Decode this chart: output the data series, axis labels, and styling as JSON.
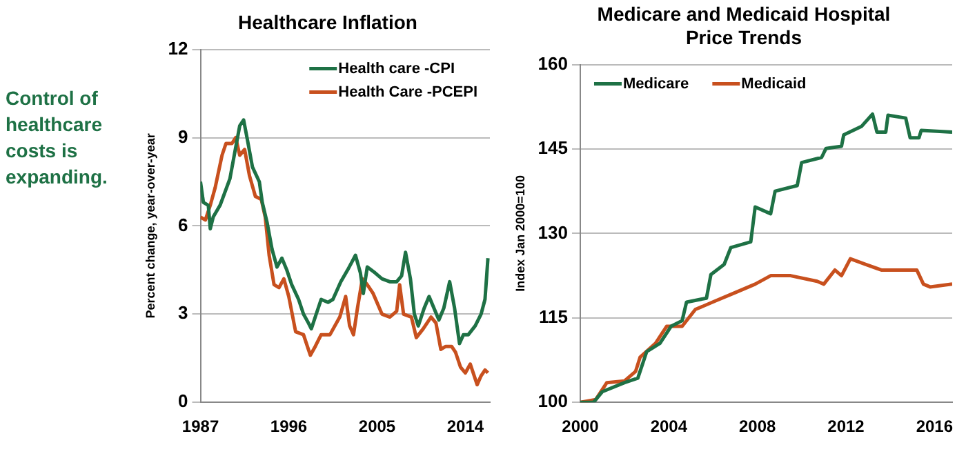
{
  "chart_data": [
    {
      "type": "other",
      "title": "Control of healthcare costs is expanding.",
      "color": "#1e7145"
    },
    {
      "type": "line",
      "title": "Healthcare Inflation",
      "ylabel": "Percent change, year-over-year",
      "xlim": [
        1987,
        2016.5
      ],
      "xticks": [
        1987,
        1996,
        2005,
        2014
      ],
      "ylim": [
        0,
        12
      ],
      "yticks": [
        0,
        3,
        6,
        9,
        12
      ],
      "grid": "y",
      "legend": "top right",
      "series": [
        {
          "name": "Health care -CPI",
          "color": "#1e7145",
          "x": [
            1987,
            1987.3,
            1987.8,
            1988,
            1988.3,
            1989,
            1990,
            1990.5,
            1991,
            1991.4,
            1991.8,
            1992.3,
            1993,
            1993.3,
            1993.8,
            1994.3,
            1994.8,
            1995.3,
            1995.8,
            1996.3,
            1997,
            1997.5,
            1998,
            1998.3,
            1998.7,
            1999.3,
            2000,
            2000.5,
            2001.3,
            2002,
            2002.8,
            2003.3,
            2003.6,
            2004,
            2004.8,
            2005.5,
            2006.3,
            2007,
            2007.5,
            2007.9,
            2008.4,
            2008.8,
            2009.2,
            2009.8,
            2010.3,
            2010.8,
            2011.3,
            2011.8,
            2012.4,
            2012.9,
            2013.4,
            2013.8,
            2014.3,
            2015,
            2015.6,
            2016,
            2016.3
          ],
          "values": [
            7.5,
            6.8,
            6.7,
            5.9,
            6.3,
            6.7,
            7.6,
            8.5,
            9.4,
            9.6,
            8.9,
            8,
            7.5,
            6.8,
            6.1,
            5.2,
            4.6,
            4.9,
            4.5,
            4,
            3.5,
            3,
            2.7,
            2.5,
            2.9,
            3.5,
            3.4,
            3.5,
            4.1,
            4.5,
            5,
            4.4,
            3.7,
            4.6,
            4.4,
            4.2,
            4.1,
            4.1,
            4.3,
            5.1,
            4.2,
            3,
            2.6,
            3.2,
            3.6,
            3.2,
            2.8,
            3.2,
            4.1,
            3.2,
            2,
            2.3,
            2.3,
            2.6,
            3,
            3.5,
            4.9
          ]
        },
        {
          "name": "Health Care -PCEPI",
          "color": "#c8501e",
          "x": [
            1987,
            1987.5,
            1988,
            1988.5,
            1989.2,
            1989.6,
            1990.2,
            1990.6,
            1991,
            1991.5,
            1992,
            1992.6,
            1993.2,
            1993.6,
            1994,
            1994.5,
            1995,
            1995.5,
            1996,
            1996.7,
            1997.5,
            1998.2,
            1998.7,
            1999.3,
            2000.2,
            2001.2,
            2001.8,
            2002.2,
            2002.6,
            2003,
            2003.5,
            2004,
            2004.6,
            2005.5,
            2006.3,
            2007,
            2007.3,
            2007.7,
            2008.5,
            2009,
            2009.7,
            2010.5,
            2011,
            2011.5,
            2012,
            2012.6,
            2013,
            2013.5,
            2014,
            2014.5,
            2015.2,
            2015.6,
            2016,
            2016.3
          ],
          "values": [
            6.3,
            6.2,
            6.7,
            7.3,
            8.4,
            8.8,
            8.8,
            9,
            8.4,
            8.6,
            7.7,
            7,
            6.9,
            6.3,
            5,
            4,
            3.9,
            4.2,
            3.6,
            2.4,
            2.3,
            1.6,
            1.9,
            2.3,
            2.3,
            2.9,
            3.6,
            2.6,
            2.3,
            3.2,
            4.2,
            4,
            3.7,
            3,
            2.9,
            3.1,
            4,
            3,
            2.9,
            2.2,
            2.5,
            2.9,
            2.7,
            1.8,
            1.9,
            1.9,
            1.7,
            1.2,
            1,
            1.3,
            0.6,
            0.9,
            1.1,
            1
          ]
        }
      ]
    },
    {
      "type": "line",
      "title": "Medicare and Medicaid Hospital Price Trends",
      "ylabel": "Index Jan 2000=100",
      "xlim": [
        2000,
        2016.8
      ],
      "xticks": [
        2000,
        2004,
        2008,
        2012,
        2016
      ],
      "ylim": [
        100,
        160
      ],
      "yticks": [
        100,
        115,
        130,
        145,
        160
      ],
      "grid": "y",
      "legend": "top left",
      "series": [
        {
          "name": "Medicare",
          "color": "#1e7145",
          "x": [
            2000,
            2000.6,
            2001,
            2002,
            2002.6,
            2003,
            2003.6,
            2004.1,
            2004.6,
            2004.8,
            2005.7,
            2005.9,
            2006.5,
            2006.8,
            2007.7,
            2007.9,
            2008.6,
            2008.8,
            2009.8,
            2010,
            2010.9,
            2011.1,
            2011.8,
            2011.9,
            2012.7,
            2013.2,
            2013.4,
            2013.8,
            2013.9,
            2014.7,
            2014.9,
            2015.3,
            2015.4,
            2016.8
          ],
          "values": [
            100,
            100,
            101.9,
            103.5,
            104.3,
            109,
            110.5,
            113.5,
            114.5,
            117.8,
            118.5,
            122.7,
            124.5,
            127.5,
            128.5,
            134.7,
            133.5,
            137.5,
            138.5,
            142.6,
            143.5,
            145.1,
            145.5,
            147.5,
            149,
            151.2,
            148,
            148,
            151,
            150.5,
            147,
            147,
            148.3,
            148
          ]
        },
        {
          "name": "Medicaid",
          "color": "#c8501e",
          "x": [
            2000,
            2000.7,
            2001.2,
            2002,
            2002.5,
            2002.7,
            2003.4,
            2003.9,
            2004.6,
            2005.2,
            2006.1,
            2007,
            2007.9,
            2008.6,
            2009.5,
            2010.7,
            2011,
            2011.5,
            2011.8,
            2012.2,
            2012.9,
            2013.6,
            2014.5,
            2015.2,
            2015.5,
            2015.8,
            2016.8
          ],
          "values": [
            100,
            100.5,
            103.5,
            103.8,
            105.5,
            108,
            110.5,
            113.5,
            113.5,
            116.5,
            118,
            119.5,
            121,
            122.5,
            122.5,
            121.5,
            121,
            123.5,
            122.5,
            125.5,
            124.5,
            123.5,
            123.5,
            123.5,
            121,
            120.5,
            121
          ]
        }
      ]
    }
  ]
}
